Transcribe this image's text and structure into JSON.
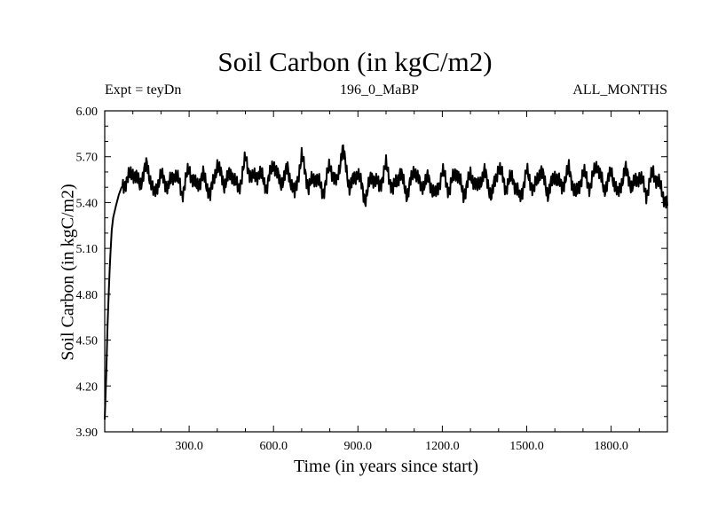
{
  "chart_data": {
    "type": "line",
    "title": "Soil Carbon (in kgC/m2)",
    "subtitle_left": "Expt = teyDn",
    "subtitle_center": "196_0_MaBP",
    "subtitle_right": "ALL_MONTHS",
    "xlabel": "Time (in years since start)",
    "ylabel": "Soil Carbon (in kgC/m2)",
    "xlim": [
      0,
      2000
    ],
    "ylim": [
      3.9,
      6.0
    ],
    "x_ticks": [
      300,
      600,
      900,
      1200,
      1500,
      1800
    ],
    "x_tick_labels": [
      "300.0",
      "600.0",
      "900.0",
      "1200.0",
      "1500.0",
      "1800.0"
    ],
    "y_ticks": [
      3.9,
      4.2,
      4.5,
      4.8,
      5.1,
      5.4,
      5.7,
      6.0
    ],
    "y_tick_labels": [
      "3.90",
      "4.20",
      "4.50",
      "4.80",
      "5.10",
      "5.40",
      "5.70",
      "6.00"
    ],
    "grid": false,
    "series": [
      {
        "name": "Soil Carbon",
        "x": [
          0,
          5,
          10,
          15,
          20,
          25,
          30,
          40,
          50,
          60,
          80,
          100,
          125,
          150,
          175,
          200,
          225,
          250,
          275,
          300,
          325,
          350,
          375,
          400,
          425,
          450,
          475,
          500,
          525,
          550,
          575,
          600,
          625,
          650,
          675,
          700,
          725,
          750,
          775,
          800,
          825,
          845,
          870,
          900,
          925,
          950,
          975,
          1000,
          1025,
          1050,
          1075,
          1100,
          1125,
          1150,
          1175,
          1200,
          1225,
          1250,
          1275,
          1300,
          1325,
          1350,
          1375,
          1400,
          1425,
          1450,
          1475,
          1500,
          1525,
          1550,
          1575,
          1600,
          1625,
          1650,
          1675,
          1700,
          1725,
          1750,
          1775,
          1800,
          1825,
          1850,
          1875,
          1900,
          1925,
          1950,
          1975,
          2000
        ],
        "y": [
          3.98,
          4.25,
          4.6,
          4.85,
          5.05,
          5.22,
          5.3,
          5.38,
          5.45,
          5.5,
          5.55,
          5.6,
          5.52,
          5.65,
          5.45,
          5.58,
          5.5,
          5.6,
          5.46,
          5.62,
          5.5,
          5.58,
          5.45,
          5.65,
          5.52,
          5.6,
          5.48,
          5.68,
          5.55,
          5.6,
          5.5,
          5.66,
          5.52,
          5.62,
          5.45,
          5.7,
          5.5,
          5.58,
          5.46,
          5.64,
          5.52,
          5.76,
          5.5,
          5.6,
          5.42,
          5.58,
          5.5,
          5.64,
          5.48,
          5.6,
          5.45,
          5.62,
          5.5,
          5.56,
          5.44,
          5.6,
          5.48,
          5.62,
          5.45,
          5.58,
          5.5,
          5.6,
          5.44,
          5.64,
          5.5,
          5.57,
          5.42,
          5.6,
          5.48,
          5.62,
          5.46,
          5.58,
          5.5,
          5.62,
          5.44,
          5.6,
          5.5,
          5.66,
          5.48,
          5.6,
          5.45,
          5.62,
          5.5,
          5.58,
          5.46,
          5.6,
          5.5,
          5.38
        ]
      }
    ]
  }
}
